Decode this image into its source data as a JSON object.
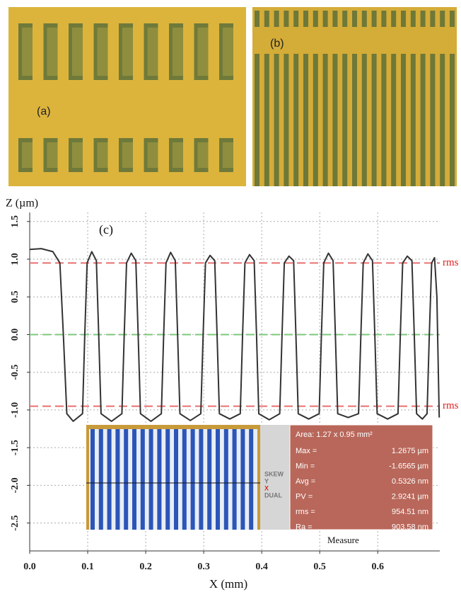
{
  "panels": {
    "a": {
      "label": "(a)"
    },
    "b": {
      "label": "(b)"
    }
  },
  "chart_data": {
    "type": "line",
    "annotation": "(c)",
    "x_label": "X (mm)",
    "y_label": "Z (µm)",
    "xlim": [
      0,
      0.707
    ],
    "ylim": [
      -2.87,
      1.62
    ],
    "xticks": [
      {
        "value": 0,
        "label": "0.0"
      },
      0.1,
      0.2,
      0.3,
      0.4,
      0.5,
      0.6
    ],
    "yticks": [
      1.5,
      {
        "value": 1,
        "label": "1.0"
      },
      0.5,
      {
        "value": 0,
        "label": "0.0"
      },
      -0.5,
      {
        "value": -1,
        "label": "-1.0"
      },
      -1.5,
      {
        "value": -2,
        "label": "-2.0"
      },
      -2.5
    ],
    "grid": true,
    "x": [
      0,
      0.02,
      0.04,
      0.052,
      0.058,
      0.064,
      0.075,
      0.091,
      0.095,
      0.099,
      0.107,
      0.115,
      0.119,
      0.123,
      0.141,
      0.159,
      0.163,
      0.167,
      0.175,
      0.183,
      0.187,
      0.191,
      0.209,
      0.227,
      0.231,
      0.235,
      0.243,
      0.251,
      0.255,
      0.259,
      0.277,
      0.295,
      0.299,
      0.303,
      0.311,
      0.319,
      0.323,
      0.327,
      0.345,
      0.363,
      0.367,
      0.371,
      0.379,
      0.387,
      0.391,
      0.395,
      0.413,
      0.431,
      0.435,
      0.439,
      0.447,
      0.455,
      0.459,
      0.463,
      0.481,
      0.499,
      0.503,
      0.507,
      0.515,
      0.523,
      0.527,
      0.531,
      0.549,
      0.567,
      0.571,
      0.575,
      0.583,
      0.591,
      0.595,
      0.599,
      0.617,
      0.635,
      0.639,
      0.643,
      0.651,
      0.659,
      0.663,
      0.667,
      0.677,
      0.685,
      0.689,
      0.693,
      0.698,
      0.702,
      0.706
    ],
    "series": [
      {
        "color": "#333333",
        "values": [
          1.13,
          1.14,
          1.1,
          0.95,
          0,
          -1.05,
          -1.15,
          -1.05,
          0,
          0.95,
          1.1,
          0.98,
          0,
          -1.05,
          -1.15,
          -1.05,
          0,
          0.95,
          1.08,
          0.98,
          0,
          -1.05,
          -1.15,
          -1.05,
          0,
          0.95,
          1.09,
          0.98,
          0,
          -1.05,
          -1.14,
          -1.05,
          0,
          0.95,
          1.05,
          0.98,
          0,
          -1.05,
          -1.12,
          -1.05,
          0,
          0.95,
          1.06,
          0.98,
          0,
          -1.05,
          -1.13,
          -1.05,
          0,
          0.95,
          1.04,
          0.98,
          0,
          -1.05,
          -1.12,
          -1.05,
          0,
          0.95,
          1.08,
          0.98,
          0,
          -1.05,
          -1.1,
          -1.05,
          0,
          0.95,
          1.07,
          0.98,
          0,
          -1.05,
          -1.12,
          -1.05,
          0,
          0.95,
          1.04,
          0.98,
          0,
          -1.05,
          -1.12,
          -1.05,
          0,
          0.95,
          1.02,
          0.5,
          -1.1
        ]
      }
    ],
    "reference_lines": [
      {
        "value": 0.95,
        "color": "#e87070",
        "label": "rms"
      },
      {
        "value": 0,
        "color": "#7cc87c"
      },
      {
        "value": -0.95,
        "color": "#e87070",
        "label": "rms"
      }
    ],
    "inset": {
      "area": "Area: 1.27 x 0.95 mm²",
      "stats": [
        {
          "label": "Max =",
          "value": "1.2675 µm"
        },
        {
          "label": "Min =",
          "value": "-1.6565 µm"
        },
        {
          "label": "Avg =",
          "value": "0.5326 nm"
        },
        {
          "label": "PV =",
          "value": "2.9241 µm"
        },
        {
          "label": "rms =",
          "value": "954.51 nm"
        },
        {
          "label": "Ra =",
          "value": "903.58 nm"
        }
      ],
      "controls": [
        "SKEW",
        "Y",
        "X",
        "DUAL"
      ],
      "button": "Measure"
    }
  }
}
